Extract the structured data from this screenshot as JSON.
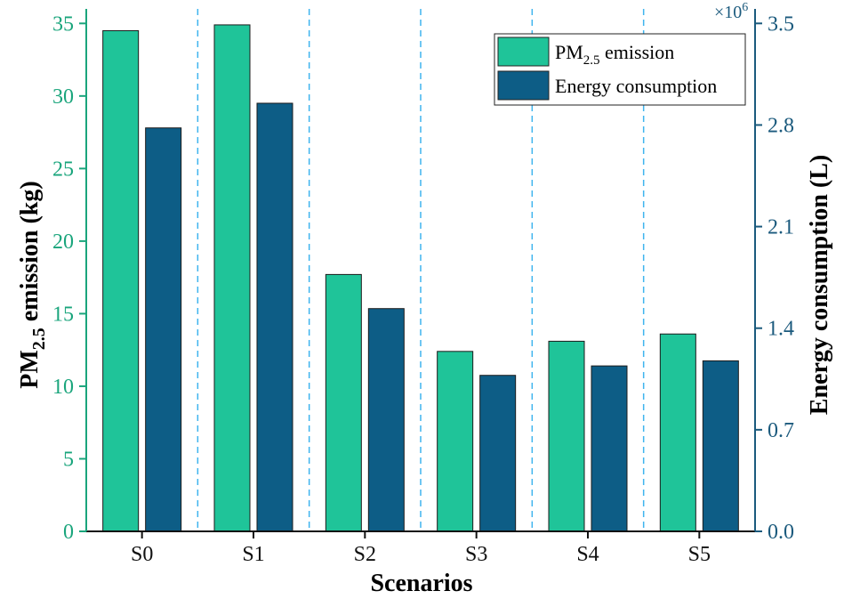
{
  "chart_data": {
    "type": "bar",
    "categories": [
      "S0",
      "S1",
      "S2",
      "S3",
      "S4",
      "S5"
    ],
    "series": [
      {
        "name": "PM2.5 emission",
        "name_parts": {
          "base": "PM",
          "sub": "2.5",
          "rest": " emission"
        },
        "axis": "left",
        "values": [
          34.5,
          34.9,
          17.7,
          12.4,
          13.1,
          13.6
        ],
        "color": "#1fc499"
      },
      {
        "name": "Energy consumption",
        "axis": "right",
        "values": [
          2780000,
          2950000,
          1535000,
          1075000,
          1140000,
          1175000
        ],
        "color": "#0d5d86"
      }
    ],
    "xlabel": "Scenarios",
    "ylabel_left": "PM2.5 emission (kg)",
    "ylabel_left_parts": {
      "base": "PM",
      "sub": "2.5",
      "rest": " emission (kg)"
    },
    "ylabel_right": "Energy consumption (L)",
    "ylim_left": [
      0,
      36
    ],
    "ylim_right": [
      0,
      3600000
    ],
    "yticks_left": [
      "0",
      "5",
      "10",
      "15",
      "20",
      "25",
      "30",
      "35"
    ],
    "yticks_right": [
      "0.0",
      "0.7",
      "1.4",
      "2.1",
      "2.8",
      "3.5"
    ],
    "right_axis_multiplier": "×10",
    "right_axis_exponent": "6",
    "legend_position": "top-right",
    "grid": "vertical dashed separators between categories",
    "colors": {
      "left_axis": "#1aa57c",
      "right_axis": "#1b5a7d",
      "separator": "#3fb4ee"
    }
  }
}
